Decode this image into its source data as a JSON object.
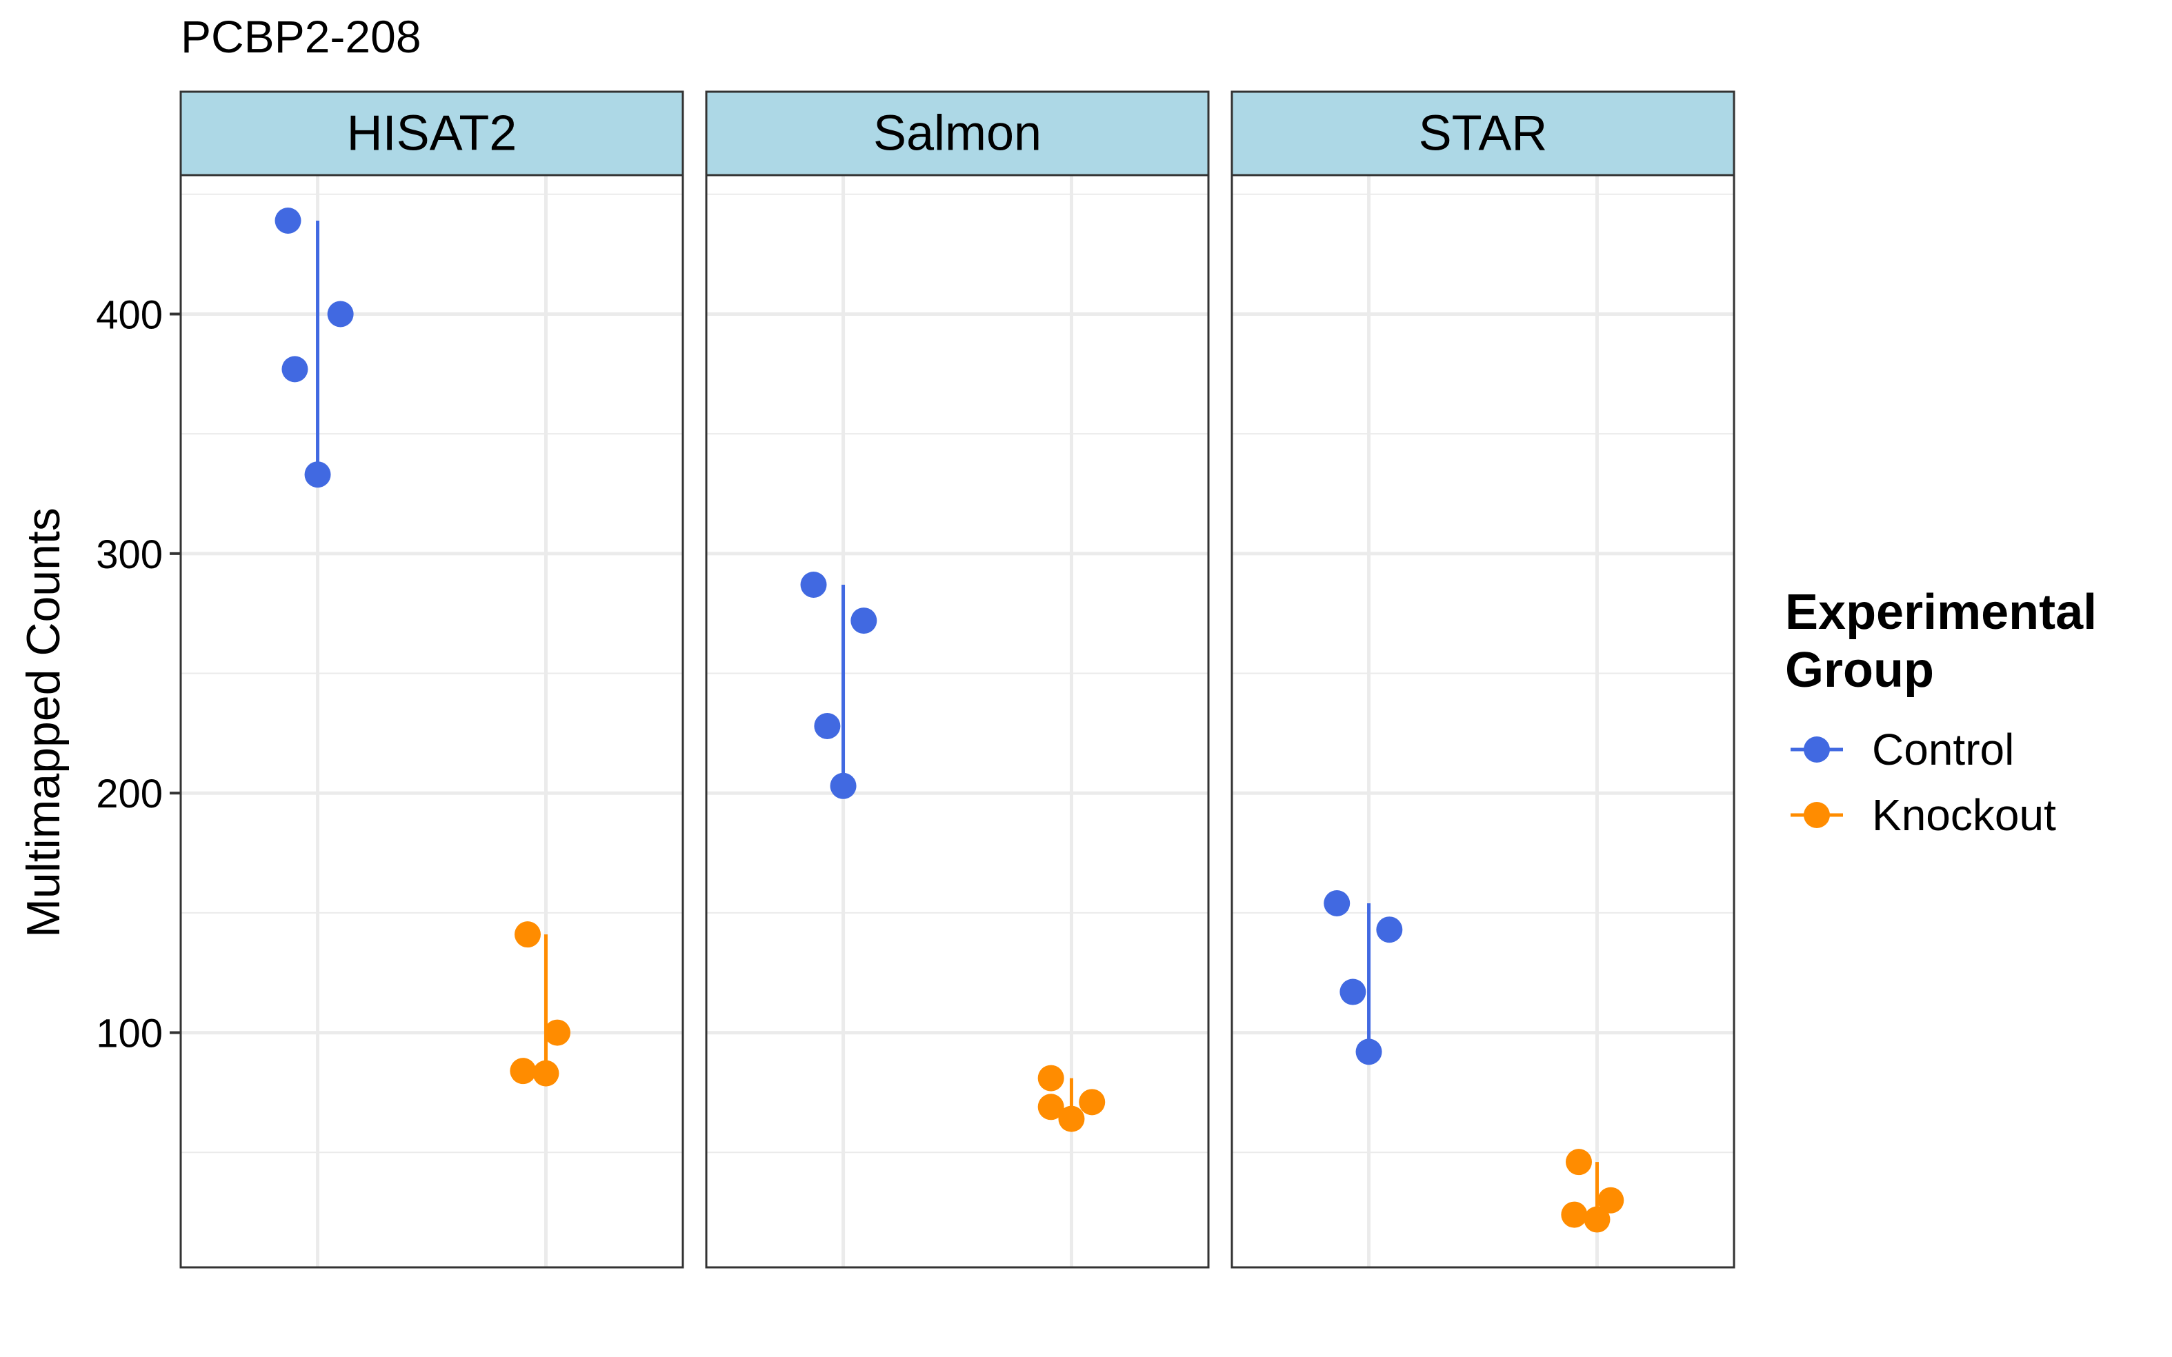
{
  "chart_data": {
    "type": "scatter",
    "title": "PCBP2-208",
    "ylabel": "Multimapped Counts",
    "xlabel": "",
    "ylim": [
      2,
      458
    ],
    "yticks": [
      100,
      200,
      300,
      400
    ],
    "grid": true,
    "legend_placement": "right",
    "legend": {
      "title_lines": [
        "Experimental",
        "Group"
      ],
      "entries": [
        {
          "label": "Control",
          "color": "#4169E1"
        },
        {
          "label": "Knockout",
          "color": "#FF8C00"
        }
      ]
    },
    "strip_color": "#ADD8E6",
    "groups": [
      "Control",
      "Knockout"
    ],
    "panels": [
      {
        "name": "HISAT2",
        "series": [
          {
            "name": "Control",
            "points": [
              {
                "x": "Control",
                "jitter": -0.13,
                "y": 439
              },
              {
                "x": "Control",
                "jitter": 0.1,
                "y": 400
              },
              {
                "x": "Control",
                "jitter": -0.1,
                "y": 377
              },
              {
                "x": "Control",
                "jitter": 0.0,
                "y": 333
              }
            ]
          },
          {
            "name": "Knockout",
            "points": [
              {
                "x": "Knockout",
                "jitter": -0.08,
                "y": 141
              },
              {
                "x": "Knockout",
                "jitter": 0.05,
                "y": 100
              },
              {
                "x": "Knockout",
                "jitter": -0.1,
                "y": 84
              },
              {
                "x": "Knockout",
                "jitter": 0.0,
                "y": 83
              }
            ]
          }
        ]
      },
      {
        "name": "Salmon",
        "series": [
          {
            "name": "Control",
            "points": [
              {
                "x": "Control",
                "jitter": -0.13,
                "y": 287
              },
              {
                "x": "Control",
                "jitter": 0.09,
                "y": 272
              },
              {
                "x": "Control",
                "jitter": -0.07,
                "y": 228
              },
              {
                "x": "Control",
                "jitter": 0.0,
                "y": 203
              }
            ]
          },
          {
            "name": "Knockout",
            "points": [
              {
                "x": "Knockout",
                "jitter": -0.09,
                "y": 81
              },
              {
                "x": "Knockout",
                "jitter": 0.09,
                "y": 71
              },
              {
                "x": "Knockout",
                "jitter": -0.09,
                "y": 69
              },
              {
                "x": "Knockout",
                "jitter": 0.0,
                "y": 64
              }
            ]
          }
        ]
      },
      {
        "name": "STAR",
        "series": [
          {
            "name": "Control",
            "points": [
              {
                "x": "Control",
                "jitter": -0.14,
                "y": 154
              },
              {
                "x": "Control",
                "jitter": 0.09,
                "y": 143
              },
              {
                "x": "Control",
                "jitter": -0.07,
                "y": 117
              },
              {
                "x": "Control",
                "jitter": 0.0,
                "y": 92
              }
            ]
          },
          {
            "name": "Knockout",
            "points": [
              {
                "x": "Knockout",
                "jitter": -0.08,
                "y": 46
              },
              {
                "x": "Knockout",
                "jitter": 0.06,
                "y": 30
              },
              {
                "x": "Knockout",
                "jitter": -0.1,
                "y": 24
              },
              {
                "x": "Knockout",
                "jitter": 0.0,
                "y": 22
              }
            ]
          }
        ]
      }
    ]
  }
}
